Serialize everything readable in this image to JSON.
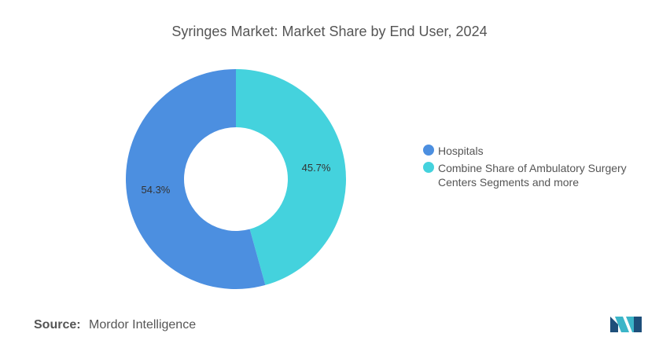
{
  "chart_title": "Syringes Market: Market Share by End User, 2024",
  "chart_data": {
    "type": "pie",
    "donut": true,
    "title": "Syringes Market: Market Share by End User, 2024",
    "slices": [
      {
        "label": "Hospitals",
        "value": 54.3,
        "value_label": "54.3%",
        "color": "#4c8fe0"
      },
      {
        "label": "Combine Share of Ambulatory Surgery Centers Segments and more",
        "value": 45.7,
        "value_label": "45.7%",
        "color": "#44d2dd"
      }
    ],
    "legend_position": "right"
  },
  "source": {
    "prefix": "Source:",
    "text": "Mordor Intelligence"
  },
  "logo": {
    "icon": "mordor-intelligence-logo",
    "colors": [
      "#1e4f7a",
      "#3bb5c8"
    ]
  }
}
